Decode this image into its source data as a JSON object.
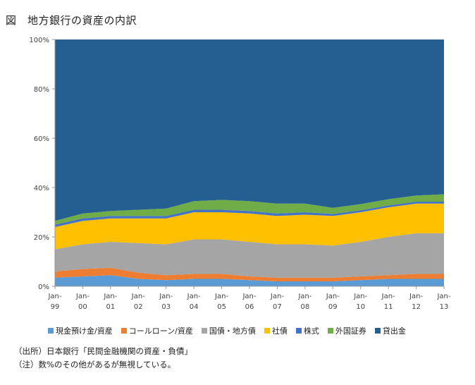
{
  "title": "図　地方銀行の資産の内訳",
  "notes": {
    "source": "（出所）日本銀行「民間金融機関の資産・負債」",
    "remark": "（注）数%のその他があるが無視している。"
  },
  "colors": {
    "cash": "#5b9bd5",
    "call_loan": "#ed7d31",
    "govt_bonds": "#a5a5a5",
    "corp_bonds": "#ffc000",
    "stocks": "#4472c4",
    "foreign_sec": "#70ad47",
    "loans": "#255e91"
  },
  "chart_data": {
    "type": "area",
    "stacked": true,
    "title": "",
    "xlabel": "",
    "ylabel": "",
    "ylim": [
      0,
      100
    ],
    "yticks": [
      "0%",
      "20%",
      "40%",
      "60%",
      "80%",
      "100%"
    ],
    "x": [
      "Jan-99",
      "Jan-00",
      "Jan-01",
      "Jan-02",
      "Jan-03",
      "Jan-04",
      "Jan-05",
      "Jan-06",
      "Jan-07",
      "Jan-08",
      "Jan-09",
      "Jan-10",
      "Jan-11",
      "Jan-12",
      "Jan-13"
    ],
    "xtick_labels": [
      {
        "top": "Jan-",
        "bottom": "99"
      },
      {
        "top": "Jan-",
        "bottom": "00"
      },
      {
        "top": "Jan-",
        "bottom": "01"
      },
      {
        "top": "Jan-",
        "bottom": "02"
      },
      {
        "top": "Jan-",
        "bottom": "03"
      },
      {
        "top": "Jan-",
        "bottom": "04"
      },
      {
        "top": "Jan-",
        "bottom": "05"
      },
      {
        "top": "Jan-",
        "bottom": "06"
      },
      {
        "top": "Jan-",
        "bottom": "07"
      },
      {
        "top": "Jan-",
        "bottom": "08"
      },
      {
        "top": "Jan-",
        "bottom": "09"
      },
      {
        "top": "Jan-",
        "bottom": "10"
      },
      {
        "top": "Jan-",
        "bottom": "11"
      },
      {
        "top": "Jan-",
        "bottom": "12"
      },
      {
        "top": "Jan-",
        "bottom": "13"
      }
    ],
    "grid": false,
    "legend_position": "bottom",
    "series": [
      {
        "name": "現金預け金/資産",
        "color_key": "cash",
        "values": [
          3.5,
          4.0,
          4.5,
          3.0,
          2.5,
          3.0,
          3.0,
          2.5,
          2.0,
          2.0,
          2.0,
          2.5,
          3.0,
          3.0,
          3.0
        ]
      },
      {
        "name": "コールローン/資産",
        "color_key": "call_loan",
        "values": [
          2.5,
          3.0,
          3.0,
          2.5,
          2.0,
          2.0,
          2.0,
          1.5,
          1.5,
          1.5,
          1.5,
          1.5,
          1.5,
          2.0,
          2.0
        ]
      },
      {
        "name": "国債・地方債",
        "color_key": "govt_bonds",
        "values": [
          9.0,
          10.0,
          10.5,
          12.0,
          12.5,
          14.0,
          14.0,
          14.0,
          13.5,
          13.5,
          13.0,
          14.0,
          15.5,
          16.5,
          16.5
        ]
      },
      {
        "name": "社債",
        "color_key": "corp_bonds",
        "values": [
          9.0,
          9.5,
          9.5,
          10.0,
          10.5,
          11.0,
          11.0,
          11.5,
          11.5,
          12.0,
          12.0,
          12.0,
          12.0,
          12.0,
          12.0
        ]
      },
      {
        "name": "株式",
        "color_key": "stocks",
        "values": [
          1.0,
          1.0,
          1.0,
          1.0,
          1.0,
          1.0,
          1.0,
          1.0,
          1.0,
          1.0,
          0.8,
          0.8,
          0.8,
          0.8,
          0.8
        ]
      },
      {
        "name": "外国証券",
        "color_key": "foreign_sec",
        "values": [
          1.5,
          2.0,
          2.0,
          2.5,
          3.0,
          3.5,
          4.0,
          4.0,
          4.0,
          3.5,
          2.5,
          2.5,
          2.5,
          2.5,
          3.0
        ]
      },
      {
        "name": "貸出金",
        "color_key": "loans",
        "values": [
          73.5,
          70.5,
          69.5,
          69.0,
          68.5,
          65.5,
          65.0,
          65.5,
          66.5,
          66.5,
          68.2,
          66.7,
          64.7,
          63.2,
          62.7
        ]
      }
    ]
  }
}
